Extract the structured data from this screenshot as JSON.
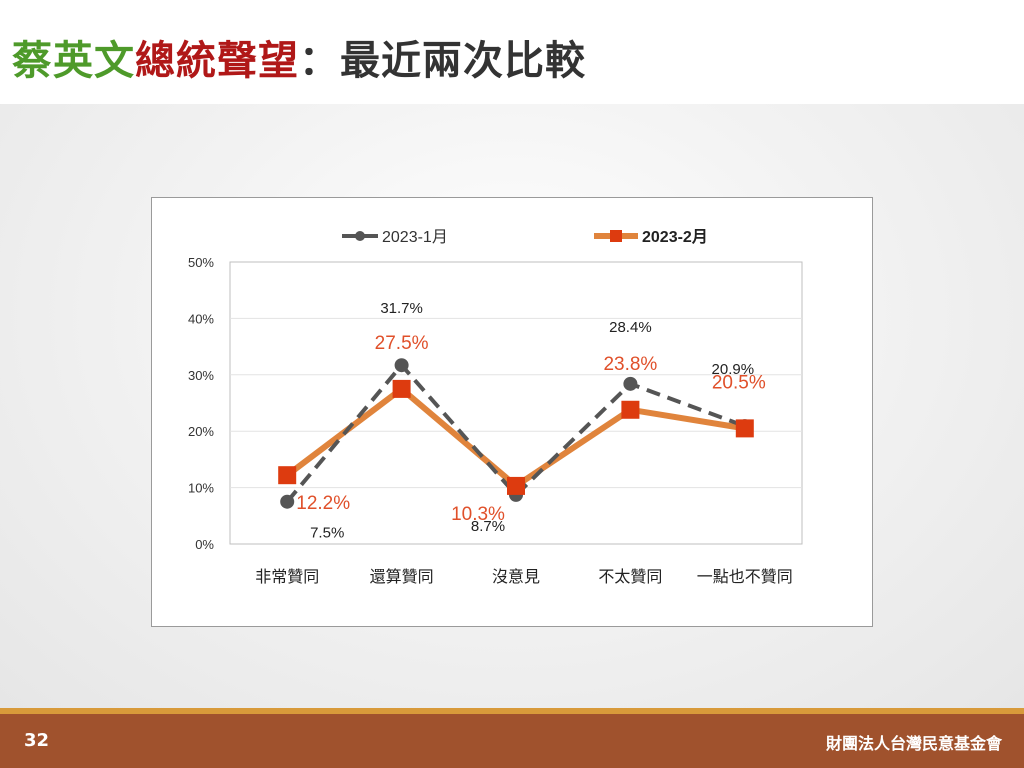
{
  "slide": {
    "title_part1": "蔡英文",
    "title_part2": "總統聲望",
    "title_part3": "：最近兩次比較",
    "page_number": "32",
    "organization": "財團法人台灣民意基金會",
    "colors": {
      "title_green": "#4e9a2a",
      "title_red": "#b01818",
      "footer": "#a0522d",
      "series_jan": "#555555",
      "series_feb_line": "#e0843c",
      "series_feb_marker": "#dd3b0f",
      "feb_label": "#e0502a"
    }
  },
  "chart_data": {
    "type": "line",
    "categories": [
      "非常贊同",
      "還算贊同",
      "沒意見",
      "不太贊同",
      "一點也不贊同"
    ],
    "ylim": [
      0,
      50
    ],
    "yticks": [
      "0%",
      "10%",
      "20%",
      "30%",
      "40%",
      "50%"
    ],
    "legend_position": "top",
    "grid": true,
    "series": [
      {
        "name": "2023-1月",
        "style": "dashed",
        "marker": "circle",
        "values": [
          7.5,
          31.7,
          8.7,
          28.4,
          20.9
        ],
        "labels": [
          "7.5%",
          "31.7%",
          "8.7%",
          "28.4%",
          "20.9%"
        ]
      },
      {
        "name": "2023-2月",
        "style": "solid",
        "marker": "square",
        "values": [
          12.2,
          27.5,
          10.3,
          23.8,
          20.5
        ],
        "labels": [
          "12.2%",
          "27.5%",
          "10.3%",
          "23.8%",
          "20.5%"
        ]
      }
    ]
  }
}
